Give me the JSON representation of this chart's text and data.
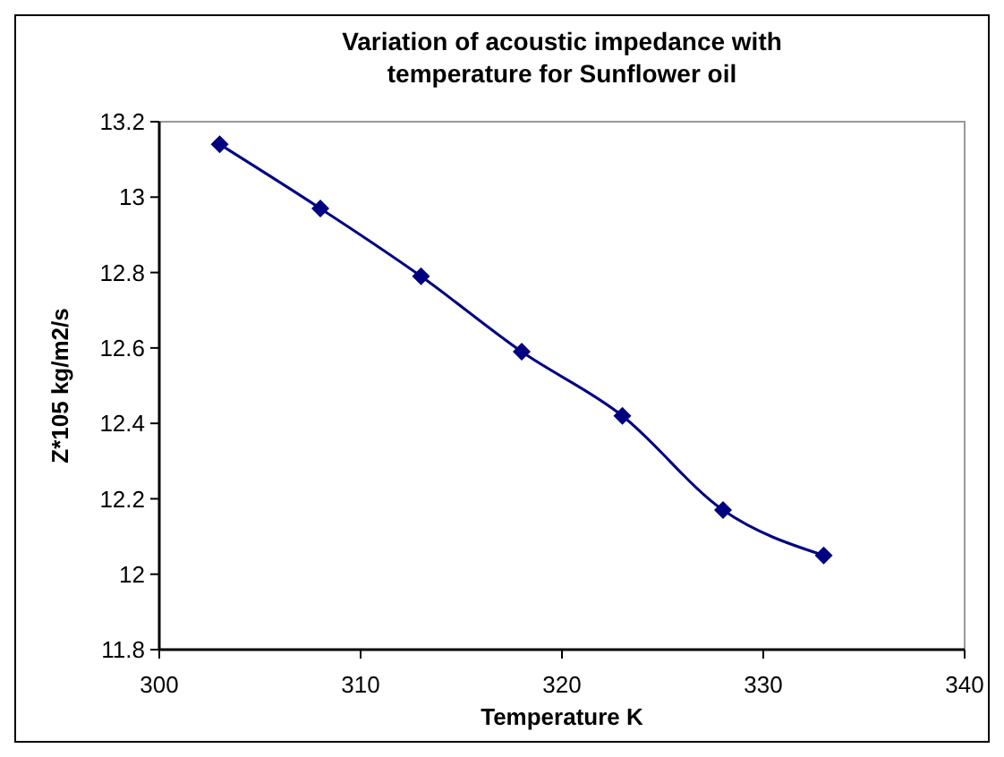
{
  "chart_data": {
    "type": "line",
    "title": "Variation of acoustic impedance with temperature for Sunflower oil",
    "xlabel": "Temperature K",
    "ylabel": "Z*105 kg/m2/s",
    "x": [
      303,
      308,
      313,
      318,
      323,
      328,
      333
    ],
    "series": [
      {
        "color": "#000080",
        "values": [
          13.14,
          12.97,
          12.79,
          12.59,
          12.42,
          12.17,
          12.05
        ]
      }
    ],
    "xlim": [
      300,
      340
    ],
    "xticks": [
      300,
      310,
      320,
      330,
      340
    ],
    "ylim": [
      11.8,
      13.2
    ],
    "yticks": [
      11.8,
      12,
      12.2,
      12.4,
      12.6,
      12.8,
      13,
      13.2
    ],
    "grid": false,
    "marker": "diamond",
    "line_style": "solid"
  }
}
